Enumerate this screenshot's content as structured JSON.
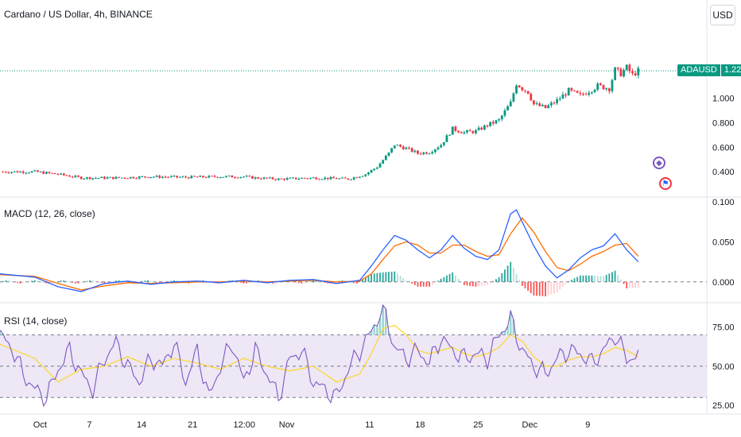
{
  "header": {
    "title": "Cardano / US Dollar, 4h, BINANCE",
    "currency": "USD"
  },
  "last_price": {
    "symbol": "ADAUSD",
    "value": "1.223"
  },
  "macd_title": "MACD (12, 26, close)",
  "rsi_title": "RSI (14, close)",
  "icons": {
    "event1": "diamond-icon",
    "event2": "us-flag-icon"
  },
  "colors": {
    "up": "#089981",
    "down": "#f23645",
    "macd": "#2962ff",
    "signal": "#ff6d00",
    "rsi": "#7e57c2",
    "rsi_ma": "#fdd835",
    "rsi_band": "#ede7f6",
    "hist_up": "#26a69a",
    "hist_up_light": "#b2dfdb",
    "hist_down": "#ff5252",
    "hist_down_light": "#ffcdd2"
  },
  "chart_data": [
    {
      "type": "candlestick",
      "title": "Cardano / US Dollar, 4h, BINANCE",
      "y_ticks": [
        "1.000",
        "0.800",
        "0.600",
        "0.400"
      ],
      "ylim": [
        0.2,
        1.8
      ],
      "x_ticks": [
        "Oct",
        "7",
        "14",
        "21",
        "12:00",
        "Nov",
        "11",
        "18",
        "25",
        "Dec",
        "9"
      ],
      "last_value": 1.223,
      "close_path": [
        [
          0,
          0.4
        ],
        [
          6,
          0.4
        ],
        [
          10,
          0.38
        ],
        [
          14,
          0.35
        ],
        [
          20,
          0.35
        ],
        [
          26,
          0.36
        ],
        [
          32,
          0.355
        ],
        [
          38,
          0.36
        ],
        [
          42,
          0.36
        ],
        [
          44,
          0.35
        ],
        [
          48,
          0.34
        ],
        [
          54,
          0.35
        ],
        [
          58,
          0.345
        ],
        [
          60,
          0.34
        ],
        [
          63,
          0.38
        ],
        [
          65,
          0.44
        ],
        [
          67,
          0.55
        ],
        [
          68,
          0.62
        ],
        [
          70,
          0.59
        ],
        [
          72,
          0.55
        ],
        [
          74,
          0.56
        ],
        [
          76,
          0.62
        ],
        [
          78,
          0.75
        ],
        [
          80,
          0.72
        ],
        [
          82,
          0.73
        ],
        [
          84,
          0.78
        ],
        [
          86,
          0.82
        ],
        [
          88,
          0.96
        ],
        [
          89,
          1.12
        ],
        [
          90,
          1.08
        ],
        [
          91,
          1.05
        ],
        [
          92,
          0.95
        ],
        [
          94,
          0.92
        ],
        [
          96,
          0.98
        ],
        [
          98,
          1.06
        ],
        [
          100,
          1.02
        ],
        [
          103,
          1.1
        ],
        [
          105,
          1.08
        ],
        [
          106,
          1.23
        ],
        [
          107,
          1.2
        ],
        [
          108,
          1.25
        ],
        [
          109,
          1.19
        ],
        [
          110,
          1.223
        ]
      ]
    },
    {
      "type": "line",
      "title": "MACD (12, 26, close)",
      "y_ticks": [
        "0.100",
        "0.050",
        "0.000"
      ],
      "ylim": [
        -0.025,
        0.105
      ],
      "series": [
        {
          "values": [
            [
              0,
              0.01
            ],
            [
              6,
              0.006
            ],
            [
              10,
              -0.006
            ],
            [
              14,
              -0.012
            ],
            [
              18,
              -0.002
            ],
            [
              22,
              0.001
            ],
            [
              26,
              -0.003
            ],
            [
              30,
              0.0
            ],
            [
              34,
              0.001
            ],
            [
              38,
              -0.001
            ],
            [
              42,
              0.002
            ],
            [
              46,
              -0.001
            ],
            [
              50,
              0.002
            ],
            [
              54,
              0.003
            ],
            [
              58,
              -0.002
            ],
            [
              62,
              0.002
            ],
            [
              64,
              0.02
            ],
            [
              66,
              0.04
            ],
            [
              68,
              0.058
            ],
            [
              70,
              0.052
            ],
            [
              72,
              0.04
            ],
            [
              74,
              0.03
            ],
            [
              76,
              0.04
            ],
            [
              78,
              0.058
            ],
            [
              80,
              0.042
            ],
            [
              82,
              0.032
            ],
            [
              84,
              0.028
            ],
            [
              86,
              0.04
            ],
            [
              88,
              0.085
            ],
            [
              89,
              0.09
            ],
            [
              90,
              0.075
            ],
            [
              92,
              0.045
            ],
            [
              94,
              0.02
            ],
            [
              96,
              0.005
            ],
            [
              98,
              0.015
            ],
            [
              100,
              0.03
            ],
            [
              102,
              0.04
            ],
            [
              104,
              0.045
            ],
            [
              106,
              0.06
            ],
            [
              108,
              0.04
            ],
            [
              110,
              0.025
            ]
          ]
        },
        {
          "values": [
            [
              0,
              0.009
            ],
            [
              6,
              0.007
            ],
            [
              10,
              -0.002
            ],
            [
              14,
              -0.01
            ],
            [
              18,
              -0.005
            ],
            [
              22,
              -0.001
            ],
            [
              26,
              -0.002
            ],
            [
              30,
              -0.001
            ],
            [
              34,
              0.0
            ],
            [
              38,
              0.0
            ],
            [
              42,
              0.001
            ],
            [
              46,
              0.0
            ],
            [
              50,
              0.001
            ],
            [
              54,
              0.002
            ],
            [
              58,
              0.0
            ],
            [
              62,
              0.001
            ],
            [
              64,
              0.01
            ],
            [
              66,
              0.028
            ],
            [
              68,
              0.045
            ],
            [
              70,
              0.05
            ],
            [
              72,
              0.046
            ],
            [
              74,
              0.036
            ],
            [
              76,
              0.036
            ],
            [
              78,
              0.046
            ],
            [
              80,
              0.046
            ],
            [
              82,
              0.038
            ],
            [
              84,
              0.032
            ],
            [
              86,
              0.034
            ],
            [
              88,
              0.06
            ],
            [
              90,
              0.08
            ],
            [
              92,
              0.062
            ],
            [
              94,
              0.038
            ],
            [
              96,
              0.018
            ],
            [
              98,
              0.014
            ],
            [
              100,
              0.022
            ],
            [
              102,
              0.032
            ],
            [
              104,
              0.038
            ],
            [
              106,
              0.046
            ],
            [
              108,
              0.048
            ],
            [
              110,
              0.032
            ]
          ]
        }
      ],
      "histogram": [
        [
          62,
          0.001
        ],
        [
          64,
          0.01
        ],
        [
          66,
          0.012
        ],
        [
          68,
          0.013
        ],
        [
          70,
          0.002
        ],
        [
          72,
          -0.006
        ],
        [
          74,
          -0.006
        ],
        [
          76,
          0.004
        ],
        [
          78,
          0.012
        ],
        [
          80,
          -0.004
        ],
        [
          82,
          -0.006
        ],
        [
          84,
          -0.004
        ],
        [
          86,
          0.006
        ],
        [
          88,
          0.025
        ],
        [
          90,
          -0.005
        ],
        [
          92,
          -0.017
        ],
        [
          94,
          -0.018
        ],
        [
          96,
          -0.013
        ],
        [
          98,
          0.001
        ],
        [
          100,
          0.008
        ],
        [
          102,
          0.008
        ],
        [
          104,
          0.007
        ],
        [
          106,
          0.014
        ],
        [
          108,
          -0.008
        ],
        [
          110,
          -0.007
        ]
      ]
    },
    {
      "type": "line",
      "title": "RSI (14, close)",
      "y_ticks": [
        "75.00",
        "50.00",
        "25.00"
      ],
      "ylim": [
        20,
        90
      ],
      "bands": [
        30,
        70
      ],
      "series": [
        {
          "values": [
            [
              0,
              70
            ],
            [
              2,
              62
            ],
            [
              4,
              45
            ],
            [
              6,
              35
            ],
            [
              8,
              30
            ],
            [
              10,
              48
            ],
            [
              12,
              60
            ],
            [
              14,
              45
            ],
            [
              16,
              35
            ],
            [
              18,
              55
            ],
            [
              20,
              65
            ],
            [
              22,
              50
            ],
            [
              24,
              40
            ],
            [
              26,
              55
            ],
            [
              28,
              50
            ],
            [
              30,
              65
            ],
            [
              32,
              40
            ],
            [
              34,
              60
            ],
            [
              36,
              30
            ],
            [
              38,
              50
            ],
            [
              40,
              65
            ],
            [
              42,
              40
            ],
            [
              44,
              60
            ],
            [
              46,
              45
            ],
            [
              48,
              30
            ],
            [
              50,
              55
            ],
            [
              52,
              60
            ],
            [
              54,
              40
            ],
            [
              56,
              35
            ],
            [
              58,
              30
            ],
            [
              60,
              48
            ],
            [
              62,
              60
            ],
            [
              64,
              72
            ],
            [
              66,
              88
            ],
            [
              68,
              62
            ],
            [
              70,
              55
            ],
            [
              72,
              60
            ],
            [
              74,
              52
            ],
            [
              76,
              68
            ],
            [
              78,
              60
            ],
            [
              80,
              55
            ],
            [
              82,
              58
            ],
            [
              84,
              55
            ],
            [
              86,
              70
            ],
            [
              88,
              80
            ],
            [
              90,
              60
            ],
            [
              92,
              50
            ],
            [
              94,
              45
            ],
            [
              96,
              55
            ],
            [
              98,
              60
            ],
            [
              100,
              58
            ],
            [
              102,
              52
            ],
            [
              104,
              60
            ],
            [
              106,
              70
            ],
            [
              108,
              55
            ],
            [
              110,
              56
            ]
          ]
        },
        {
          "values": [
            [
              0,
              64
            ],
            [
              6,
              55
            ],
            [
              10,
              40
            ],
            [
              14,
              48
            ],
            [
              18,
              50
            ],
            [
              22,
              56
            ],
            [
              26,
              50
            ],
            [
              30,
              55
            ],
            [
              34,
              52
            ],
            [
              38,
              48
            ],
            [
              42,
              55
            ],
            [
              46,
              50
            ],
            [
              50,
              47
            ],
            [
              54,
              50
            ],
            [
              58,
              40
            ],
            [
              62,
              45
            ],
            [
              64,
              58
            ],
            [
              66,
              74
            ],
            [
              68,
              76
            ],
            [
              70,
              70
            ],
            [
              72,
              60
            ],
            [
              74,
              58
            ],
            [
              76,
              60
            ],
            [
              78,
              62
            ],
            [
              80,
              58
            ],
            [
              82,
              56
            ],
            [
              84,
              58
            ],
            [
              86,
              62
            ],
            [
              88,
              70
            ],
            [
              90,
              66
            ],
            [
              92,
              56
            ],
            [
              94,
              50
            ],
            [
              96,
              50
            ],
            [
              98,
              54
            ],
            [
              100,
              56
            ],
            [
              102,
              56
            ],
            [
              104,
              58
            ],
            [
              106,
              62
            ],
            [
              108,
              60
            ],
            [
              110,
              56
            ]
          ]
        }
      ]
    }
  ]
}
